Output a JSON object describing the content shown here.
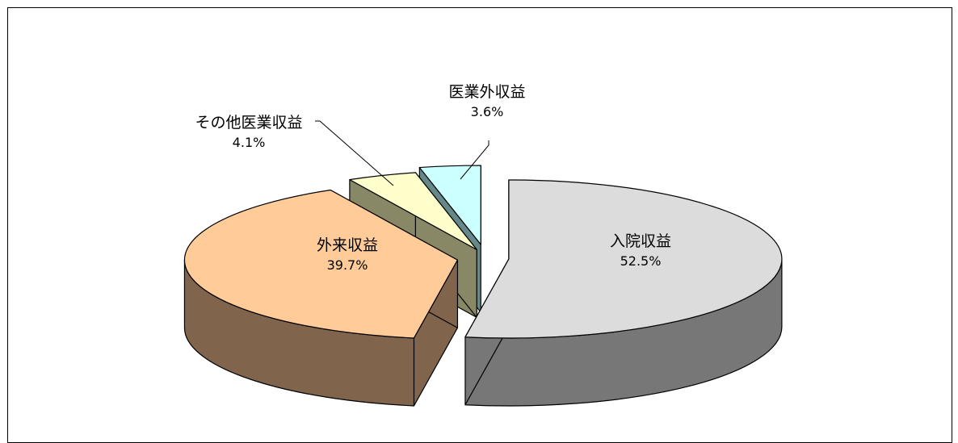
{
  "chart_data": {
    "type": "pie",
    "style": "3d-exploded",
    "title": "",
    "slices": [
      {
        "label": "入院収益",
        "value": 52.5,
        "display": "52.5%",
        "color": "#dcdcdc",
        "side_color": "#777777"
      },
      {
        "label": "外来収益",
        "value": 39.7,
        "display": "39.7%",
        "color": "#ffcc99",
        "side_color": "#80644b"
      },
      {
        "label": "その他医業収益",
        "value": 4.1,
        "display": "4.1%",
        "color": "#ffffcc",
        "side_color": "#888866"
      },
      {
        "label": "医業外収益",
        "value": 3.6,
        "display": "3.6%",
        "color": "#ccffff",
        "side_color": "#668888"
      }
    ],
    "legend": "none"
  }
}
